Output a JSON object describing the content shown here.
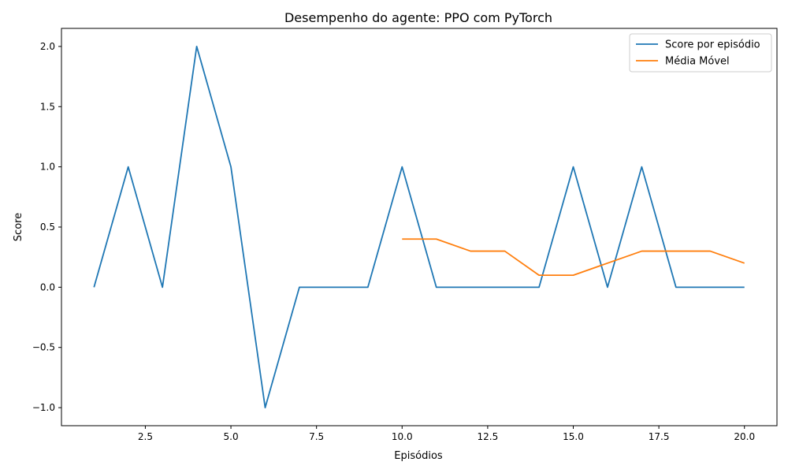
{
  "chart_data": {
    "type": "line",
    "title": "Desempenho do agente: PPO com PyTorch",
    "xlabel": "Episódios",
    "ylabel": "Score",
    "xlim": [
      0.05,
      20.95
    ],
    "ylim": [
      -1.15,
      2.15
    ],
    "xticks": [
      2.5,
      5.0,
      7.5,
      10.0,
      12.5,
      15.0,
      17.5,
      20.0
    ],
    "xtick_labels": [
      "2.5",
      "5.0",
      "7.5",
      "10.0",
      "12.5",
      "15.0",
      "17.5",
      "20.0"
    ],
    "yticks": [
      -1.0,
      -0.5,
      0.0,
      0.5,
      1.0,
      1.5,
      2.0
    ],
    "ytick_labels": [
      "−1.0",
      "−0.5",
      "0.0",
      "0.5",
      "1.0",
      "1.5",
      "2.0"
    ],
    "grid": false,
    "legend": "top-right",
    "series": [
      {
        "name": "Score por episódio",
        "color": "#1f77b4",
        "x": [
          1,
          2,
          3,
          4,
          5,
          6,
          7,
          8,
          9,
          10,
          11,
          12,
          13,
          14,
          15,
          16,
          17,
          18,
          19,
          20
        ],
        "y": [
          0,
          1,
          0,
          2,
          1,
          -1,
          0,
          0,
          0,
          1,
          0,
          0,
          0,
          0,
          1,
          0,
          1,
          0,
          0,
          0
        ]
      },
      {
        "name": "Média Móvel",
        "color": "#ff7f0e",
        "x": [
          10,
          11,
          12,
          13,
          14,
          15,
          16,
          17,
          18,
          19,
          20
        ],
        "y": [
          0.4,
          0.4,
          0.3,
          0.3,
          0.1,
          0.1,
          0.2,
          0.3,
          0.3,
          0.3,
          0.2
        ]
      }
    ]
  }
}
